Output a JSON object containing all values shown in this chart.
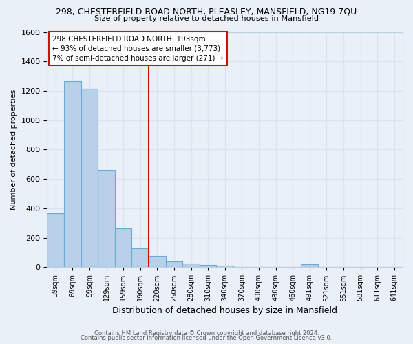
{
  "title1": "298, CHESTERFIELD ROAD NORTH, PLEASLEY, MANSFIELD, NG19 7QU",
  "title2": "Size of property relative to detached houses in Mansfield",
  "xlabel": "Distribution of detached houses by size in Mansfield",
  "ylabel": "Number of detached properties",
  "footer1": "Contains HM Land Registry data © Crown copyright and database right 2024.",
  "footer2": "Contains public sector information licensed under the Open Government Licence v3.0.",
  "bar_labels": [
    "39sqm",
    "69sqm",
    "99sqm",
    "129sqm",
    "159sqm",
    "190sqm",
    "220sqm",
    "250sqm",
    "280sqm",
    "310sqm",
    "340sqm",
    "370sqm",
    "400sqm",
    "430sqm",
    "460sqm",
    "491sqm",
    "521sqm",
    "551sqm",
    "581sqm",
    "611sqm",
    "641sqm"
  ],
  "bar_values": [
    365,
    1265,
    1215,
    660,
    265,
    130,
    75,
    38,
    25,
    14,
    10,
    0,
    0,
    0,
    0,
    20,
    0,
    0,
    0,
    0,
    0
  ],
  "bar_color": "#b8d0e8",
  "bar_edge_color": "#6aaad4",
  "bg_color": "#eaf0f8",
  "grid_color": "#d8e4f0",
  "vline_x": 5.5,
  "vline_color": "#cc1111",
  "annotation_text": "298 CHESTERFIELD ROAD NORTH: 193sqm\n← 93% of detached houses are smaller (3,773)\n7% of semi-detached houses are larger (271) →",
  "annotation_box_color": "#ffffff",
  "annotation_box_edge": "#cc1111",
  "ylim": [
    0,
    1600
  ],
  "yticks": [
    0,
    200,
    400,
    600,
    800,
    1000,
    1200,
    1400,
    1600
  ]
}
